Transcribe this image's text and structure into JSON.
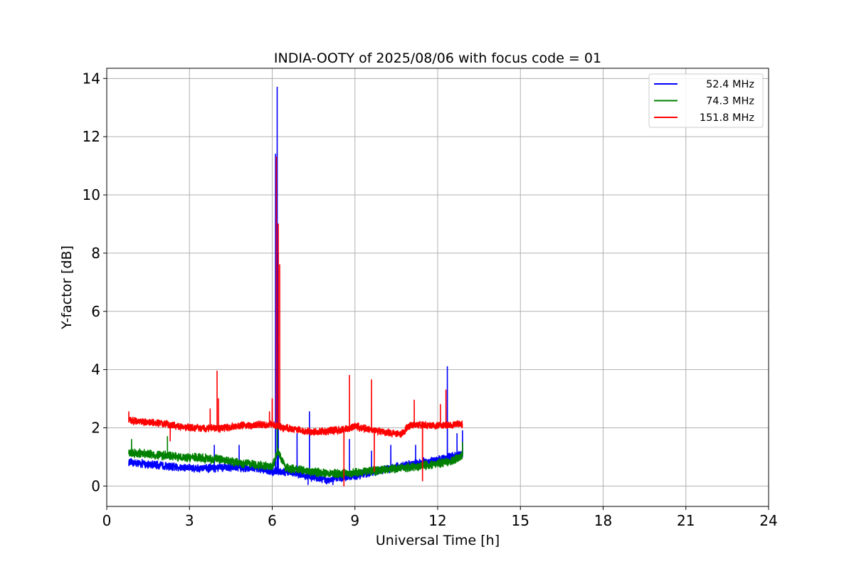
{
  "chart_data": {
    "type": "line",
    "title": "INDIA-OOTY of 2025/08/06 with focus code = 01",
    "xlabel": "Universal Time [h]",
    "ylabel": "Y-factor [dB]",
    "xlim": [
      0,
      24
    ],
    "ylim": [
      -0.7,
      14.35
    ],
    "x_ticks": [
      0,
      3,
      6,
      9,
      12,
      15,
      18,
      21,
      24
    ],
    "x_tick_labels": [
      "0",
      "3",
      "6",
      "9",
      "12",
      "15",
      "18",
      "21",
      "24"
    ],
    "y_ticks": [
      0,
      2,
      4,
      6,
      8,
      10,
      12,
      14
    ],
    "y_tick_labels": [
      "0",
      "2",
      "4",
      "6",
      "8",
      "10",
      "12",
      "14"
    ],
    "grid": true,
    "legend_position": "top-right",
    "series": [
      {
        "name": "52.4 MHz",
        "color": "#0000ff",
        "base": [
          [
            0.8,
            0.8
          ],
          [
            1.5,
            0.75
          ],
          [
            2.5,
            0.65
          ],
          [
            3.5,
            0.6
          ],
          [
            4.5,
            0.65
          ],
          [
            5.5,
            0.6
          ],
          [
            6.0,
            0.5
          ],
          [
            6.5,
            0.5
          ],
          [
            7.5,
            0.3
          ],
          [
            8.0,
            0.2
          ],
          [
            8.5,
            0.3
          ],
          [
            9.0,
            0.35
          ],
          [
            10.0,
            0.55
          ],
          [
            11.0,
            0.75
          ],
          [
            12.0,
            0.9
          ],
          [
            12.9,
            1.1
          ]
        ],
        "noise": 0.13,
        "spikes": [
          [
            6.12,
            11.4
          ],
          [
            6.18,
            13.7
          ],
          [
            6.22,
            8.0
          ],
          [
            12.35,
            4.1
          ],
          [
            7.35,
            2.55
          ],
          [
            6.9,
            1.8
          ],
          [
            4.8,
            1.4
          ],
          [
            3.9,
            1.4
          ],
          [
            8.8,
            1.6
          ],
          [
            9.6,
            1.2
          ],
          [
            10.3,
            1.4
          ],
          [
            11.2,
            1.4
          ],
          [
            12.7,
            1.8
          ],
          [
            12.9,
            1.9
          ],
          [
            7.3,
            0.05
          ],
          [
            8.2,
            0.05
          ]
        ]
      },
      {
        "name": "74.3 MHz",
        "color": "#008000",
        "base": [
          [
            0.8,
            1.15
          ],
          [
            2.0,
            1.05
          ],
          [
            3.0,
            0.98
          ],
          [
            4.0,
            0.92
          ],
          [
            5.0,
            0.78
          ],
          [
            6.0,
            0.65
          ],
          [
            6.2,
            1.2
          ],
          [
            6.5,
            0.62
          ],
          [
            7.5,
            0.48
          ],
          [
            8.5,
            0.42
          ],
          [
            9.5,
            0.5
          ],
          [
            10.5,
            0.6
          ],
          [
            11.5,
            0.7
          ],
          [
            12.5,
            0.85
          ],
          [
            12.9,
            1.05
          ]
        ],
        "noise": 0.14,
        "spikes": [
          [
            0.9,
            1.6
          ],
          [
            2.2,
            1.7
          ],
          [
            6.18,
            2.05
          ],
          [
            12.9,
            1.5
          ]
        ]
      },
      {
        "name": "151.8 MHz",
        "color": "#ff0000",
        "base": [
          [
            0.8,
            2.25
          ],
          [
            2.0,
            2.15
          ],
          [
            3.0,
            2.0
          ],
          [
            4.0,
            1.98
          ],
          [
            5.0,
            2.08
          ],
          [
            6.0,
            2.12
          ],
          [
            6.4,
            2.0
          ],
          [
            7.5,
            1.85
          ],
          [
            8.5,
            1.92
          ],
          [
            9.0,
            2.05
          ],
          [
            10.0,
            1.85
          ],
          [
            10.7,
            1.8
          ],
          [
            11.0,
            2.1
          ],
          [
            12.0,
            2.08
          ],
          [
            12.9,
            2.12
          ]
        ],
        "noise": 0.12,
        "spikes": [
          [
            0.8,
            2.55
          ],
          [
            3.75,
            2.65
          ],
          [
            4.0,
            3.95
          ],
          [
            4.05,
            3.0
          ],
          [
            5.9,
            2.55
          ],
          [
            6.0,
            3.0
          ],
          [
            6.15,
            11.3
          ],
          [
            6.22,
            9.0
          ],
          [
            6.27,
            7.6
          ],
          [
            8.8,
            3.8
          ],
          [
            9.6,
            3.65
          ],
          [
            11.15,
            2.95
          ],
          [
            12.1,
            2.8
          ],
          [
            12.3,
            3.3
          ],
          [
            8.6,
            0.0
          ],
          [
            9.7,
            0.5
          ],
          [
            11.45,
            0.18
          ],
          [
            2.3,
            1.55
          ]
        ]
      }
    ]
  }
}
